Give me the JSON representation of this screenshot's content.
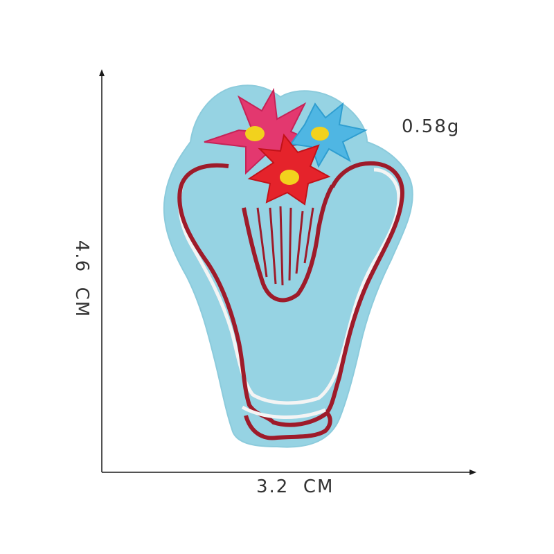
{
  "product": {
    "weight": "0.58g",
    "width": "3.2  CM",
    "height": "4.6  CM"
  },
  "colors": {
    "felt": "#96d3e3",
    "border": "#9e1b2a",
    "white_stitch": "#f4f4f4",
    "flower_pink": "#e3386f",
    "flower_red": "#e5232b",
    "flower_blue": "#4fb6e3",
    "flower_center": "#f2d21d",
    "axis": "#1a1a1a"
  }
}
